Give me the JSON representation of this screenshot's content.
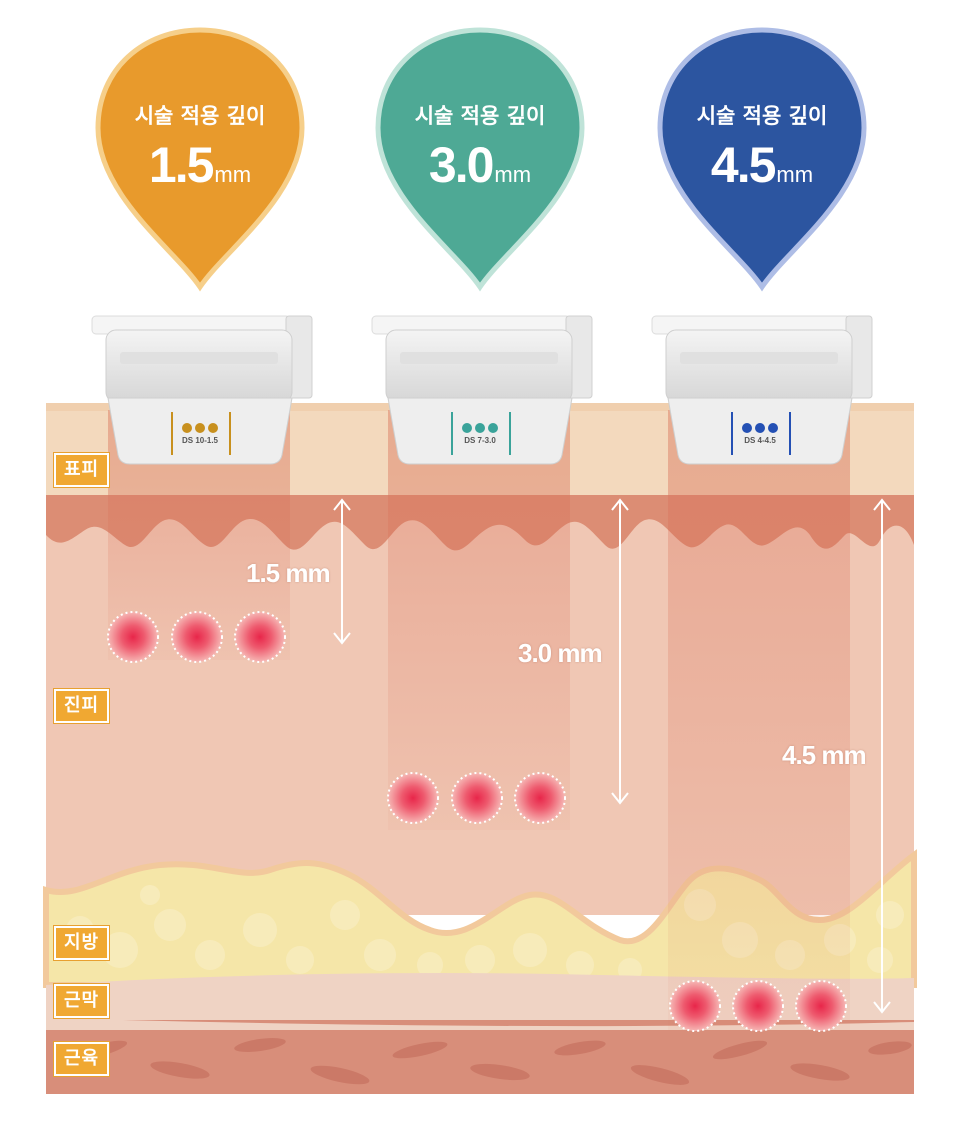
{
  "pins": [
    {
      "title": "시술 적용 깊이",
      "value": "1.5",
      "unit": "mm",
      "color": "#e89a2c",
      "border": "#f6cf8a"
    },
    {
      "title": "시술 적용 깊이",
      "value": "3.0",
      "unit": "mm",
      "color": "#4ea995",
      "border": "#bfe3d8"
    },
    {
      "title": "시술 적용 깊이",
      "value": "4.5",
      "unit": "mm",
      "color": "#2c55a0",
      "border": "#aebde6"
    }
  ],
  "cartridges": [
    {
      "label": "DS 10-1.5",
      "dot_color": "#c8901e"
    },
    {
      "label": "DS 7-3.0",
      "dot_color": "#3aa39a"
    },
    {
      "label": "DS 4-4.5",
      "dot_color": "#2450b4"
    }
  ],
  "layers": {
    "epidermis": "표피",
    "dermis": "진피",
    "fat": "지방",
    "fascia": "근막",
    "muscle": "근육"
  },
  "depths": [
    "1.5 mm",
    "3.0 mm",
    "4.5 mm"
  ]
}
